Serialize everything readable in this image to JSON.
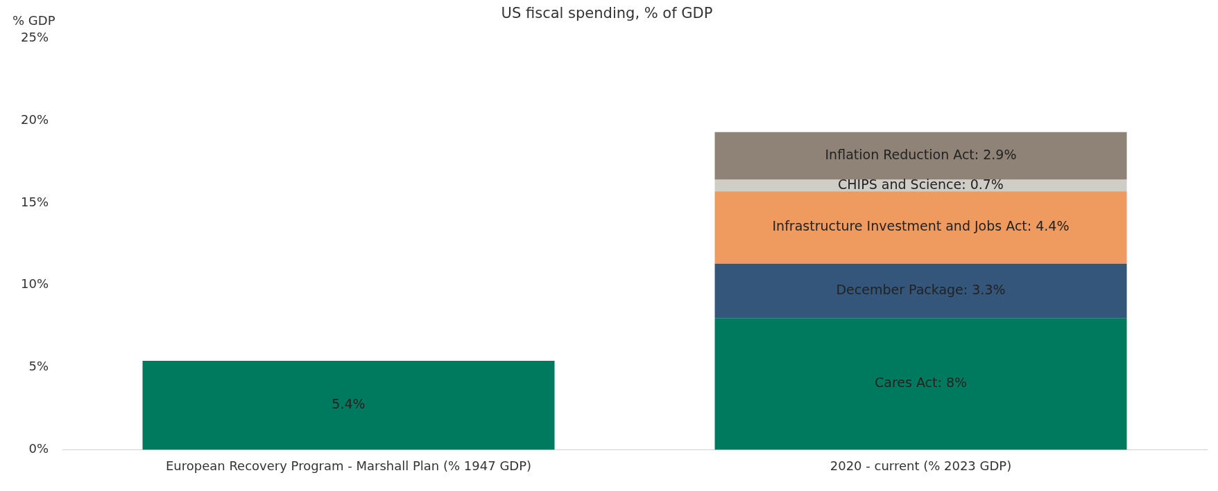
{
  "chart_data": {
    "type": "bar",
    "title": "US fiscal spending, % of GDP",
    "ylabel": "% GDP",
    "categories": [
      "European Recovery Program - Marshall Plan (% 1947 GDP)",
      "2020 - current (% 2023 GDP)"
    ],
    "stacked": true,
    "grid": false,
    "legend": false,
    "ylim": [
      0,
      25
    ],
    "yticks": [
      {
        "value": 0,
        "label": "0%"
      },
      {
        "value": 5,
        "label": "5%"
      },
      {
        "value": 10,
        "label": "10%"
      },
      {
        "value": 15,
        "label": "15%"
      },
      {
        "value": 20,
        "label": "20%"
      },
      {
        "value": 25,
        "label": "25%"
      }
    ],
    "series": [
      {
        "color": "#007a5e",
        "values": [
          5.4,
          8
        ],
        "value_labels": [
          "5.4%",
          "Cares Act: 8%"
        ]
      },
      {
        "color": "#34567a",
        "values": [
          null,
          3.3
        ],
        "value_labels": [
          null,
          "December Package: 3.3%"
        ]
      },
      {
        "color": "#ef9a5e",
        "values": [
          null,
          4.4
        ],
        "value_labels": [
          null,
          "Infrastructure Investment and Jobs Act: 4.4%"
        ]
      },
      {
        "color": "#d0ccc6",
        "values": [
          null,
          0.7
        ],
        "value_labels": [
          null,
          "CHIPS and Science: 0.7%"
        ]
      },
      {
        "color": "#8f8378",
        "values": [
          null,
          2.9
        ],
        "value_labels": [
          null,
          "Inflation Reduction Act: 2.9%"
        ]
      }
    ]
  }
}
